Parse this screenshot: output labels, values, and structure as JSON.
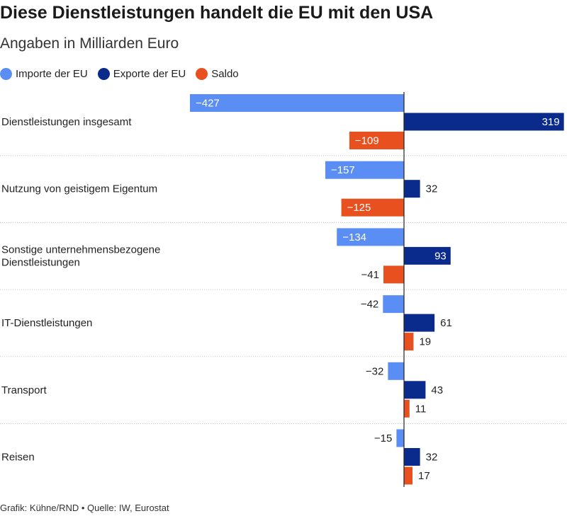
{
  "title": "Diese Dienstleistungen handelt die EU mit den USA",
  "subtitle": "Angaben in Milliarden Euro",
  "footer": "Grafik: Kühne/RND • Quelle: IW, Eurostat",
  "colors": {
    "imports": "#5b8ef5",
    "exports": "#0a2a8c",
    "balance": "#e8501f",
    "divider": "#c8c8c8",
    "axis": "#222222"
  },
  "chart_data": {
    "type": "bar",
    "orientation": "horizontal",
    "categories": [
      [
        "Dienstleistungen insgesamt"
      ],
      [
        "Nutzung von geistigem Eigentum"
      ],
      [
        "Sonstige unternehmensbezogene",
        "Dienstleistungen"
      ],
      [
        "IT-Dienstleistungen"
      ],
      [
        "Transport"
      ],
      [
        "Reisen"
      ]
    ],
    "series": [
      {
        "name": "Importe der EU",
        "color": "#5b8ef5",
        "values": [
          -427,
          -157,
          -134,
          -42,
          -32,
          -15
        ],
        "labels": [
          "−427",
          "−157",
          "−134",
          "−42",
          "−32",
          "−15"
        ]
      },
      {
        "name": "Exporte der EU",
        "color": "#0a2a8c",
        "values": [
          319,
          32,
          93,
          61,
          43,
          32
        ],
        "labels": [
          "319",
          "32",
          "93",
          "61",
          "43",
          "32"
        ]
      },
      {
        "name": "Saldo",
        "color": "#e8501f",
        "values": [
          -109,
          -125,
          -41,
          19,
          11,
          17
        ],
        "labels": [
          "−109",
          "−125",
          "−41",
          "19",
          "11",
          "17"
        ]
      }
    ],
    "xlim": [
      -427,
      319
    ],
    "legend_position": "top-left",
    "grid": false
  }
}
